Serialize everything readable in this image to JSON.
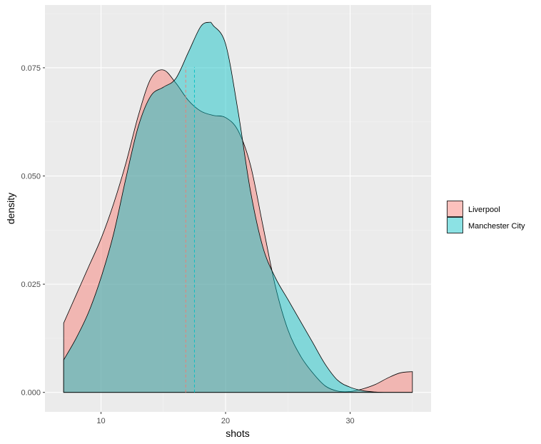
{
  "chart_data": {
    "type": "area",
    "subtype": "density",
    "xlabel": "shots",
    "ylabel": "density",
    "xlim": [
      5.5,
      36.5
    ],
    "ylim": [
      -0.0045,
      0.0895
    ],
    "x_ticks": [
      10,
      20,
      30
    ],
    "x_tick_labels": [
      "10",
      "20",
      "30"
    ],
    "y_ticks": [
      0,
      0.025,
      0.05,
      0.075
    ],
    "y_tick_labels": [
      "0.000",
      "0.025",
      "0.050",
      "0.075"
    ],
    "grid": true,
    "legend_position": "right",
    "series": [
      {
        "name": "Liverpool",
        "fill_color": "#F8766D",
        "fill_opacity": 0.45,
        "mean": 16.8,
        "points": [
          [
            7,
            0.016
          ],
          [
            8,
            0.0225
          ],
          [
            9,
            0.029
          ],
          [
            10,
            0.0355
          ],
          [
            11,
            0.0435
          ],
          [
            12,
            0.053
          ],
          [
            13,
            0.064
          ],
          [
            14,
            0.0725
          ],
          [
            15,
            0.0745
          ],
          [
            16,
            0.0715
          ],
          [
            17,
            0.0675
          ],
          [
            18,
            0.065
          ],
          [
            19,
            0.064
          ],
          [
            20,
            0.0635
          ],
          [
            21,
            0.0605
          ],
          [
            22,
            0.0525
          ],
          [
            23,
            0.0385
          ],
          [
            24,
            0.0245
          ],
          [
            25,
            0.0145
          ],
          [
            26,
            0.0085
          ],
          [
            27,
            0.0045
          ],
          [
            28,
            0.0015
          ],
          [
            29,
            0.0003
          ],
          [
            30,
            0.0002
          ],
          [
            31,
            0.0008
          ],
          [
            32,
            0.0018
          ],
          [
            33,
            0.0033
          ],
          [
            34,
            0.0045
          ],
          [
            35,
            0.0048
          ]
        ]
      },
      {
        "name": "Manchester City",
        "fill_color": "#00BFC4",
        "fill_opacity": 0.45,
        "mean": 17.5,
        "points": [
          [
            7,
            0.0075
          ],
          [
            8,
            0.0125
          ],
          [
            9,
            0.0185
          ],
          [
            10,
            0.0265
          ],
          [
            11,
            0.0365
          ],
          [
            12,
            0.0495
          ],
          [
            13,
            0.0615
          ],
          [
            14,
            0.0685
          ],
          [
            15,
            0.0705
          ],
          [
            16,
            0.0725
          ],
          [
            17,
            0.0785
          ],
          [
            18,
            0.0845
          ],
          [
            18.7,
            0.0855
          ],
          [
            19,
            0.0848
          ],
          [
            20,
            0.0805
          ],
          [
            21,
            0.065
          ],
          [
            22,
            0.0465
          ],
          [
            23,
            0.0335
          ],
          [
            24,
            0.0265
          ],
          [
            25,
            0.0215
          ],
          [
            26,
            0.0165
          ],
          [
            27,
            0.0115
          ],
          [
            28,
            0.0065
          ],
          [
            29,
            0.0028
          ],
          [
            30,
            0.0012
          ],
          [
            31,
            0.0004
          ],
          [
            32,
            0.0001
          ],
          [
            33,
            0.0
          ],
          [
            35,
            0.0
          ]
        ]
      }
    ]
  }
}
